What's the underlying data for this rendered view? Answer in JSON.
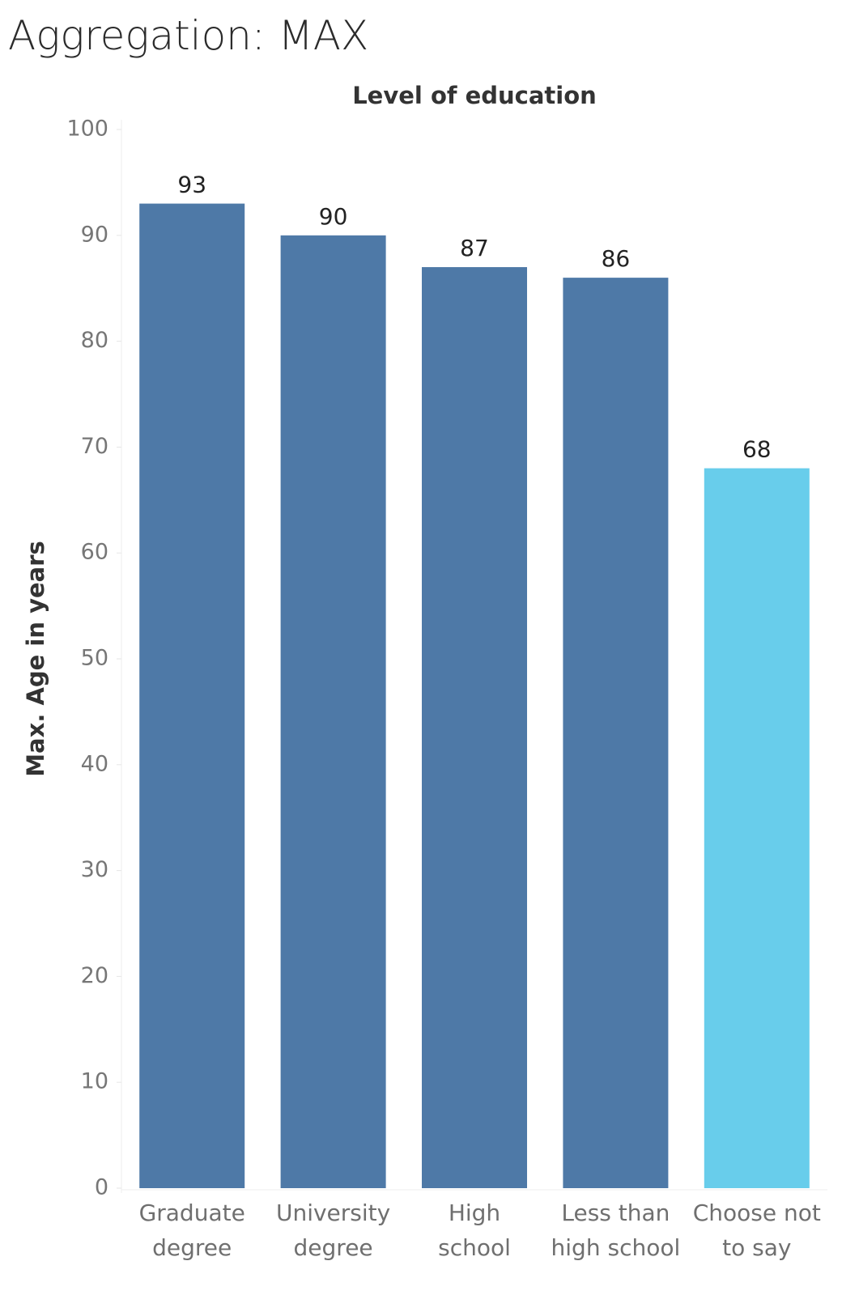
{
  "page": {
    "title": "Aggregation: MAX"
  },
  "chart_data": {
    "type": "bar",
    "title": "Aggregation: MAX",
    "column_header": "Level of education",
    "ylabel": "Max. Age in years",
    "xlabel": "",
    "ylim": [
      0,
      100
    ],
    "yticks": [
      0,
      10,
      20,
      30,
      40,
      50,
      60,
      70,
      80,
      90,
      100
    ],
    "grid": false,
    "categories": [
      [
        "Graduate",
        "degree"
      ],
      [
        "University",
        "degree"
      ],
      [
        "High",
        "school"
      ],
      [
        "Less than",
        "high school"
      ],
      [
        "Choose not",
        "to say"
      ]
    ],
    "values": [
      93,
      90,
      87,
      86,
      68
    ],
    "colors": [
      "#4e79a7",
      "#4e79a7",
      "#4e79a7",
      "#4e79a7",
      "#68cdeb"
    ]
  }
}
